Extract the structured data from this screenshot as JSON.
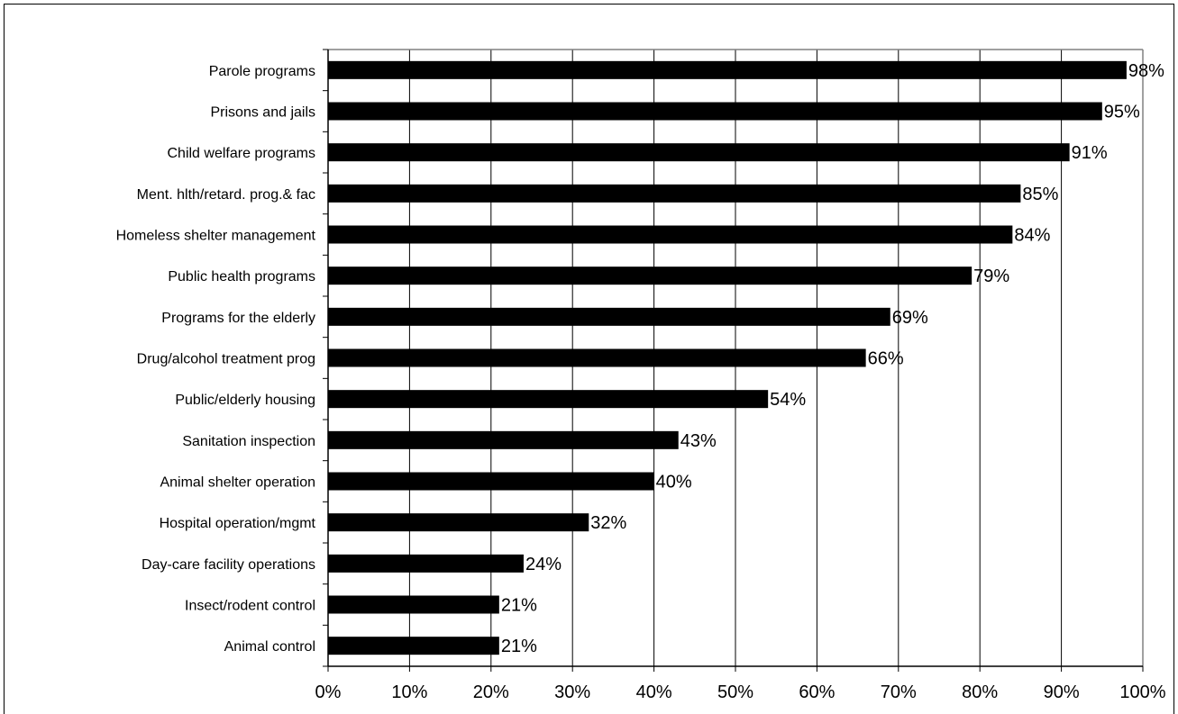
{
  "chart_data": {
    "type": "bar",
    "orientation": "horizontal",
    "title": "",
    "xlabel": "",
    "ylabel": "",
    "xlim": [
      0,
      100
    ],
    "x_ticks": [
      "0%",
      "10%",
      "20%",
      "30%",
      "40%",
      "50%",
      "60%",
      "70%",
      "80%",
      "90%",
      "100%"
    ],
    "grid": "vertical",
    "legend": "none",
    "bar_color": "#000000",
    "grid_color": "#000000",
    "plot_border_color": "#808080",
    "categories": [
      "Parole programs",
      "Prisons and jails",
      "Child welfare programs",
      "Ment. hlth/retard. prog.& fac",
      "Homeless shelter management",
      "Public health programs",
      "Programs for the elderly",
      "Drug/alcohol treatment prog",
      "Public/elderly housing",
      "Sanitation inspection",
      "Animal shelter operation",
      "Hospital operation/mgmt",
      "Day-care facility operations",
      "Insect/rodent control",
      "Animal control"
    ],
    "values": [
      98,
      95,
      91,
      85,
      84,
      79,
      69,
      66,
      54,
      43,
      40,
      32,
      24,
      21,
      21
    ],
    "data_labels": [
      "98%",
      "95%",
      "91%",
      "85%",
      "84%",
      "79%",
      "69%",
      "66%",
      "54%",
      "43%",
      "40%",
      "32%",
      "24%",
      "21%",
      "21%"
    ]
  }
}
